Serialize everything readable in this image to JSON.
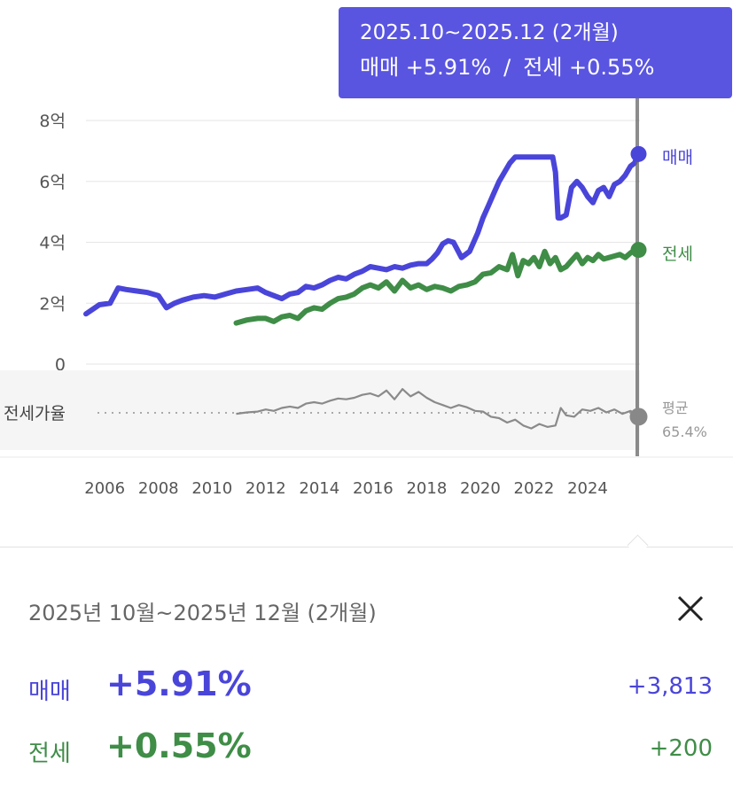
{
  "tooltip": {
    "period": "2025.10~2025.12 (2개월)",
    "sale_text": "매매 +5.91%",
    "separator": "/",
    "jeonse_text": "전세 +0.55%"
  },
  "colors": {
    "sale": "#4a45d9",
    "jeonse": "#3f8d47",
    "ratio": "#8a8a8a",
    "tooltip_bg": "#5a55e0",
    "ratio_bg": "#f5f5f5"
  },
  "chart_data": [
    {
      "type": "line",
      "x_tick_labels": [
        "2006",
        "2008",
        "2010",
        "2012",
        "2014",
        "2016",
        "2018",
        "2020",
        "2022",
        "2024"
      ],
      "y_tick_labels": [
        "8억",
        "6억",
        "4억",
        "2억",
        "0"
      ],
      "ylim": [
        0,
        8
      ],
      "xlim": [
        2005.3,
        2025.95
      ],
      "grid": true,
      "series": [
        {
          "name": "매매",
          "end_label": "매매",
          "x": [
            2005.3,
            2005.8,
            2006.2,
            2006.5,
            2006.8,
            2007.2,
            2007.6,
            2008.0,
            2008.3,
            2008.6,
            2008.9,
            2009.3,
            2009.7,
            2010.1,
            2010.5,
            2010.9,
            2011.3,
            2011.7,
            2012.0,
            2012.3,
            2012.6,
            2012.9,
            2013.2,
            2013.5,
            2013.8,
            2014.1,
            2014.4,
            2014.7,
            2015.0,
            2015.3,
            2015.6,
            2015.9,
            2016.2,
            2016.5,
            2016.8,
            2017.1,
            2017.4,
            2017.7,
            2018.0,
            2018.2,
            2018.4,
            2018.6,
            2018.8,
            2019.0,
            2019.3,
            2019.6,
            2019.9,
            2020.1,
            2020.3,
            2020.5,
            2020.7,
            2020.9,
            2021.1,
            2021.3,
            2021.5,
            2021.8,
            2022.1,
            2022.4,
            2022.7,
            2022.8,
            2022.9,
            2023.0,
            2023.2,
            2023.4,
            2023.6,
            2023.8,
            2024.0,
            2024.2,
            2024.4,
            2024.6,
            2024.8,
            2025.0,
            2025.2,
            2025.4,
            2025.6,
            2025.75,
            2025.9
          ],
          "values": [
            1.65,
            1.95,
            2.0,
            2.5,
            2.45,
            2.4,
            2.35,
            2.25,
            1.85,
            2.0,
            2.1,
            2.2,
            2.25,
            2.2,
            2.3,
            2.4,
            2.45,
            2.5,
            2.35,
            2.25,
            2.15,
            2.3,
            2.35,
            2.55,
            2.5,
            2.6,
            2.75,
            2.85,
            2.8,
            2.95,
            3.05,
            3.2,
            3.15,
            3.1,
            3.2,
            3.15,
            3.25,
            3.3,
            3.3,
            3.45,
            3.65,
            3.95,
            4.05,
            4.0,
            3.5,
            3.7,
            4.3,
            4.8,
            5.2,
            5.6,
            6.0,
            6.3,
            6.6,
            6.8,
            6.8,
            6.8,
            6.8,
            6.8,
            6.8,
            6.3,
            4.8,
            4.8,
            4.9,
            5.8,
            6.0,
            5.8,
            5.5,
            5.3,
            5.7,
            5.8,
            5.5,
            5.9,
            6.0,
            6.2,
            6.5,
            6.6,
            6.9
          ]
        },
        {
          "name": "전세",
          "end_label": "전세",
          "x": [
            2010.9,
            2011.3,
            2011.7,
            2012.0,
            2012.3,
            2012.6,
            2012.9,
            2013.2,
            2013.5,
            2013.8,
            2014.1,
            2014.4,
            2014.7,
            2015.0,
            2015.3,
            2015.6,
            2015.9,
            2016.2,
            2016.5,
            2016.8,
            2017.1,
            2017.4,
            2017.7,
            2018.0,
            2018.3,
            2018.6,
            2018.9,
            2019.2,
            2019.5,
            2019.8,
            2020.1,
            2020.4,
            2020.7,
            2021.0,
            2021.2,
            2021.4,
            2021.6,
            2021.8,
            2022.0,
            2022.2,
            2022.4,
            2022.6,
            2022.8,
            2023.0,
            2023.2,
            2023.4,
            2023.6,
            2023.8,
            2024.0,
            2024.2,
            2024.4,
            2024.6,
            2024.8,
            2025.0,
            2025.2,
            2025.4,
            2025.6,
            2025.75,
            2025.9
          ],
          "values": [
            1.35,
            1.45,
            1.5,
            1.5,
            1.4,
            1.55,
            1.6,
            1.5,
            1.75,
            1.85,
            1.8,
            2.0,
            2.15,
            2.2,
            2.3,
            2.5,
            2.6,
            2.5,
            2.7,
            2.4,
            2.75,
            2.5,
            2.6,
            2.45,
            2.55,
            2.5,
            2.4,
            2.55,
            2.6,
            2.7,
            2.95,
            3.0,
            3.2,
            3.1,
            3.6,
            2.9,
            3.4,
            3.3,
            3.5,
            3.2,
            3.7,
            3.3,
            3.5,
            3.1,
            3.2,
            3.4,
            3.6,
            3.3,
            3.5,
            3.4,
            3.6,
            3.45,
            3.5,
            3.55,
            3.6,
            3.5,
            3.65,
            3.75,
            3.75
          ]
        }
      ]
    },
    {
      "type": "line",
      "label": "전세가율",
      "avg_label": "평균",
      "avg_value": "65.4%",
      "xlim": [
        2005.3,
        2025.95
      ],
      "series": [
        {
          "name": "전세가율",
          "x": [
            2010.9,
            2011.3,
            2011.7,
            2012.0,
            2012.3,
            2012.6,
            2012.9,
            2013.2,
            2013.5,
            2013.8,
            2014.1,
            2014.4,
            2014.7,
            2015.0,
            2015.3,
            2015.6,
            2015.9,
            2016.2,
            2016.5,
            2016.8,
            2017.1,
            2017.4,
            2017.7,
            2018.0,
            2018.3,
            2018.6,
            2018.9,
            2019.2,
            2019.5,
            2019.8,
            2020.1,
            2020.4,
            2020.7,
            2021.0,
            2021.3,
            2021.6,
            2021.9,
            2022.2,
            2022.5,
            2022.8,
            2023.0,
            2023.2,
            2023.5,
            2023.8,
            2024.1,
            2024.4,
            2024.7,
            2025.0,
            2025.3,
            2025.6,
            2025.9
          ],
          "values": [
            60.0,
            61.0,
            61.5,
            63.0,
            62.0,
            64.0,
            65.0,
            64.0,
            67.0,
            68.0,
            67.0,
            69.0,
            70.5,
            70.0,
            71.0,
            73.0,
            74.0,
            72.0,
            76.0,
            70.0,
            77.0,
            72.0,
            75.0,
            71.0,
            68.0,
            66.0,
            64.0,
            66.0,
            64.5,
            62.0,
            61.5,
            58.0,
            57.0,
            54.0,
            56.0,
            52.0,
            50.0,
            53.0,
            51.0,
            52.0,
            64.0,
            59.0,
            58.0,
            63.0,
            62.0,
            64.0,
            61.0,
            63.0,
            60.0,
            62.0,
            58.0
          ]
        }
      ],
      "ylim": [
        40,
        85
      ]
    }
  ],
  "panel": {
    "period": "2025년 10월~2025년 12월 (2개월)",
    "close_label": "✕",
    "sale": {
      "label": "매매",
      "pct": "+5.91%",
      "abs": "+3,813"
    },
    "jeonse": {
      "label": "전세",
      "pct": "+0.55%",
      "abs": "+200"
    }
  }
}
